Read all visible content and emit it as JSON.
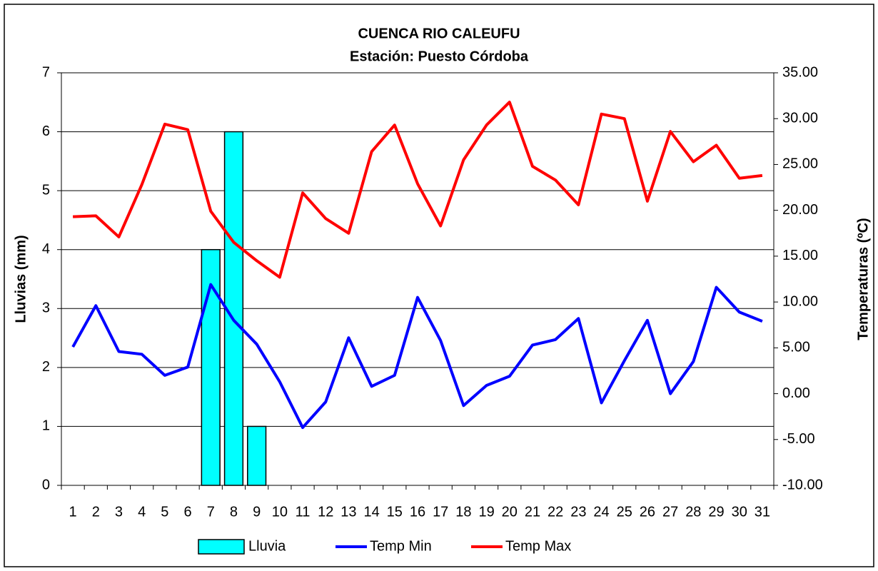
{
  "chart_data": {
    "type": "bar_line",
    "title": "CUENCA RIO CALEUFU",
    "subtitle": "Estación: Puesto Córdoba",
    "ylabel": "Lluvias (mm)",
    "y2label": "Temperaturas (ºC)",
    "categories": [
      "1",
      "2",
      "3",
      "4",
      "5",
      "6",
      "7",
      "8",
      "9",
      "10",
      "11",
      "12",
      "13",
      "14",
      "15",
      "16",
      "17",
      "18",
      "19",
      "20",
      "21",
      "22",
      "23",
      "24",
      "25",
      "26",
      "27",
      "28",
      "29",
      "30",
      "31"
    ],
    "ylim": [
      0,
      7
    ],
    "yticks": [
      0,
      1,
      2,
      3,
      4,
      5,
      6,
      7
    ],
    "y2lim": [
      -10,
      35
    ],
    "y2ticks": [
      {
        "value": -10,
        "label": "-10.00"
      },
      {
        "value": -5,
        "label": "-5.00"
      },
      {
        "value": 0,
        "label": "0.00"
      },
      {
        "value": 5,
        "label": "5.00"
      },
      {
        "value": 10,
        "label": "10.00"
      },
      {
        "value": 15,
        "label": "15.00"
      },
      {
        "value": 20,
        "label": "20.00"
      },
      {
        "value": 25,
        "label": "25.00"
      },
      {
        "value": 30,
        "label": "30.00"
      },
      {
        "value": 35,
        "label": "35.00"
      }
    ],
    "grid": true,
    "series": [
      {
        "name": "Lluvia",
        "type": "bar",
        "color": "#00ffff",
        "values": [
          0,
          0,
          0,
          0,
          0,
          0,
          4,
          6,
          1,
          0,
          0,
          0,
          0,
          0,
          0,
          0,
          0,
          0,
          0,
          0,
          0,
          0,
          0,
          0,
          0,
          0,
          0,
          0,
          0,
          0,
          0
        ]
      },
      {
        "name": "Temp Min",
        "type": "line",
        "axis": "y2",
        "color": "#0000ff",
        "values": [
          5.1,
          9.6,
          4.6,
          4.3,
          2.0,
          2.9,
          11.9,
          8.0,
          5.4,
          1.3,
          -3.7,
          -0.9,
          6.1,
          0.8,
          2.0,
          10.5,
          5.8,
          -1.3,
          0.9,
          1.9,
          5.3,
          5.9,
          8.2,
          -1.0,
          3.6,
          8.0,
          0.0,
          3.5,
          11.6,
          8.9,
          7.9
        ]
      },
      {
        "name": "Temp Max",
        "type": "line",
        "axis": "y2",
        "color": "#ff0000",
        "values": [
          19.3,
          19.4,
          17.1,
          22.8,
          29.4,
          28.8,
          19.9,
          16.5,
          14.5,
          12.7,
          21.9,
          19.1,
          17.5,
          26.4,
          29.3,
          22.9,
          18.3,
          25.5,
          29.3,
          31.8,
          24.8,
          23.3,
          20.6,
          30.5,
          30.0,
          21.0,
          28.6,
          25.3,
          27.1,
          23.5,
          23.8
        ]
      }
    ],
    "legend": "bottom"
  }
}
